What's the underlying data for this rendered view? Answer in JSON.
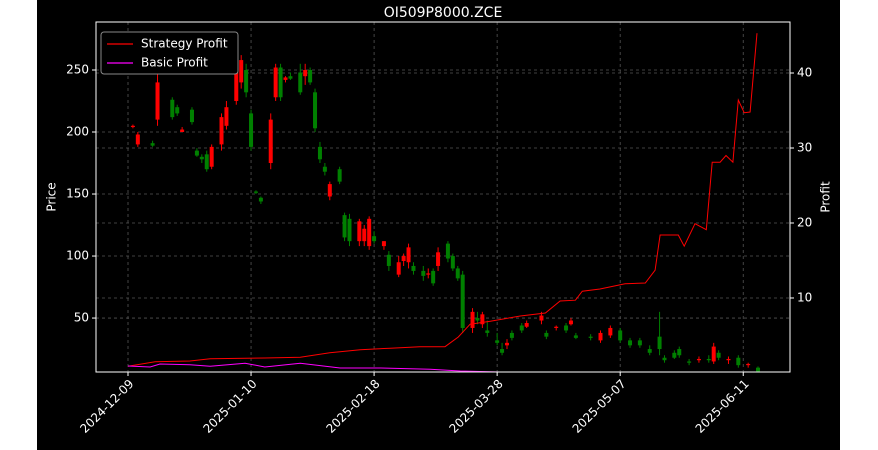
{
  "chart_data": {
    "type": "candlestick",
    "title": "OI509P8000.ZCE",
    "ylabel": "Price",
    "y2label": "Profit",
    "xlim": [
      -6.5,
      134.5
    ],
    "xticks": [
      {
        "value": 0,
        "label": "2024-12-09"
      },
      {
        "value": 25,
        "label": "2025-01-10"
      },
      {
        "value": 50,
        "label": "2025-02-18"
      },
      {
        "value": 75,
        "label": "2025-03-28"
      },
      {
        "value": 100,
        "label": "2025-05-07"
      },
      {
        "value": 125,
        "label": "2025-06-11"
      }
    ],
    "ylim": [
      6.5,
      288.7
    ],
    "yticks": [
      50,
      100,
      150,
      200,
      250
    ],
    "y2lim": [
      0.13,
      46.8
    ],
    "y2ticks": [
      10,
      20,
      30,
      40
    ],
    "grid": true,
    "legend": "upper left",
    "up_color": "#ff0000",
    "down_color": "#008000",
    "candles": {
      "x": [
        1,
        2,
        5,
        6,
        9,
        10,
        11,
        13,
        14,
        15,
        16,
        17,
        19,
        20,
        22,
        23,
        24,
        25,
        26,
        27,
        29,
        30,
        31,
        32,
        33,
        35,
        36,
        37,
        38,
        39,
        40,
        41,
        43,
        44,
        45,
        47,
        48,
        49,
        50,
        52,
        53,
        55,
        56,
        57,
        58,
        60,
        61,
        62,
        63,
        65,
        66,
        67,
        68,
        70,
        71,
        72,
        73,
        75,
        76,
        77,
        78,
        80,
        81,
        84,
        85,
        87,
        89,
        90,
        91,
        94,
        96,
        98,
        100,
        102,
        104,
        106,
        108,
        109,
        111,
        112,
        114,
        116,
        118,
        119,
        120,
        122,
        124,
        126,
        128
      ],
      "open": [
        204,
        190,
        191,
        210,
        226,
        220,
        200,
        218,
        185,
        180,
        182,
        172,
        190,
        205,
        225,
        240,
        250,
        215,
        152,
        147,
        175,
        228,
        252,
        242,
        245,
        248,
        245,
        250,
        232,
        188,
        172,
        148,
        170,
        133,
        130,
        112,
        112,
        108,
        116,
        108,
        101,
        85,
        96,
        95,
        92,
        88,
        85,
        88,
        92,
        110,
        100,
        90,
        85,
        42,
        50,
        45,
        40,
        32,
        25,
        28,
        38,
        44,
        43,
        48,
        38,
        42,
        44,
        45,
        36,
        35,
        32,
        36,
        40,
        32,
        32,
        25,
        35,
        18,
        22,
        25,
        15,
        16,
        17,
        15,
        22,
        16,
        18,
        12,
        10
      ],
      "high": [
        206,
        200,
        193,
        250,
        228,
        222,
        204,
        220,
        187,
        182,
        185,
        190,
        215,
        225,
        250,
        262,
        255,
        218,
        153,
        148,
        215,
        255,
        255,
        245,
        248,
        255,
        255,
        252,
        235,
        192,
        175,
        160,
        172,
        135,
        134,
        130,
        125,
        132,
        120,
        112,
        104,
        100,
        102,
        110,
        95,
        92,
        90,
        90,
        107,
        112,
        102,
        92,
        88,
        58,
        55,
        55,
        48,
        38,
        30,
        33,
        40,
        46,
        48,
        55,
        40,
        44,
        46,
        50,
        38,
        37,
        40,
        44,
        42,
        34,
        34,
        28,
        55,
        20,
        24,
        27,
        17,
        19,
        20,
        30,
        24,
        19,
        20,
        14,
        11
      ],
      "low": [
        203,
        188,
        188,
        205,
        210,
        213,
        200,
        206,
        180,
        175,
        168,
        170,
        185,
        202,
        222,
        235,
        228,
        185,
        150,
        142,
        170,
        225,
        225,
        240,
        242,
        230,
        238,
        238,
        200,
        175,
        165,
        145,
        158,
        112,
        108,
        108,
        108,
        105,
        110,
        105,
        88,
        83,
        92,
        90,
        85,
        80,
        82,
        76,
        88,
        95,
        88,
        80,
        38,
        38,
        45,
        42,
        35,
        28,
        20,
        25,
        32,
        38,
        42,
        45,
        33,
        40,
        38,
        44,
        33,
        32,
        30,
        34,
        30,
        26,
        26,
        20,
        20,
        14,
        17,
        18,
        12,
        14,
        14,
        13,
        16,
        13,
        10,
        10,
        6.5
      ],
      "close": [
        205,
        198,
        189,
        240,
        212,
        215,
        202,
        208,
        181,
        178,
        170,
        188,
        212,
        220,
        248,
        258,
        232,
        188,
        151,
        144,
        210,
        252,
        228,
        244,
        243,
        232,
        250,
        240,
        203,
        178,
        168,
        158,
        160,
        115,
        112,
        128,
        122,
        130,
        112,
        112,
        92,
        95,
        100,
        107,
        88,
        84,
        86,
        78,
        103,
        98,
        90,
        82,
        42,
        55,
        48,
        53,
        38,
        30,
        22,
        30,
        34,
        40,
        46,
        52,
        35,
        43,
        40,
        48,
        34,
        34,
        38,
        42,
        32,
        28,
        28,
        22,
        25,
        16,
        18,
        20,
        14,
        17,
        16,
        27,
        18,
        17,
        12,
        13,
        7
      ]
    },
    "series": [
      {
        "name": "Strategy Profit",
        "color": "#ff0000",
        "axis": "y2",
        "x": [
          0,
          5.5,
          12.6,
          16.7,
          27.8,
          35,
          41,
          47.2,
          53.3,
          59.3,
          64.4,
          67.1,
          69.5,
          73.6,
          79.7,
          84.8,
          87.8,
          90.9,
          92.3,
          95.9,
          101,
          105.1,
          107.1,
          108.1,
          111.8,
          113,
          115.2,
          117.5,
          118.7,
          120.3,
          121.5,
          122.9,
          124,
          125.2,
          126.4,
          127.8
        ],
        "values": [
          0.9,
          1.5,
          1.6,
          1.9,
          2,
          2.1,
          2.7,
          3.1,
          3.3,
          3.5,
          3.5,
          4.8,
          6.5,
          6.9,
          7.6,
          8,
          9.6,
          9.7,
          10.9,
          11.2,
          11.9,
          12,
          13.7,
          18.4,
          18.4,
          16.9,
          19.9,
          19.1,
          28.1,
          28.1,
          29,
          28.1,
          36.4,
          34.7,
          34.8,
          45.3
        ]
      },
      {
        "name": "Basic Profit",
        "color": "#ff00ff",
        "axis": "y2",
        "x": [
          0,
          4.5,
          6.5,
          12.6,
          16.7,
          23.8,
          27.8,
          35,
          43.1,
          51.2,
          61.4,
          67.5,
          75.6,
          127.8
        ],
        "values": [
          0.93,
          0.8,
          1.2,
          1.1,
          0.9,
          1.3,
          0.8,
          1.3,
          0.67,
          0.67,
          0.5,
          0.27,
          0.13,
          0.13
        ]
      }
    ]
  }
}
